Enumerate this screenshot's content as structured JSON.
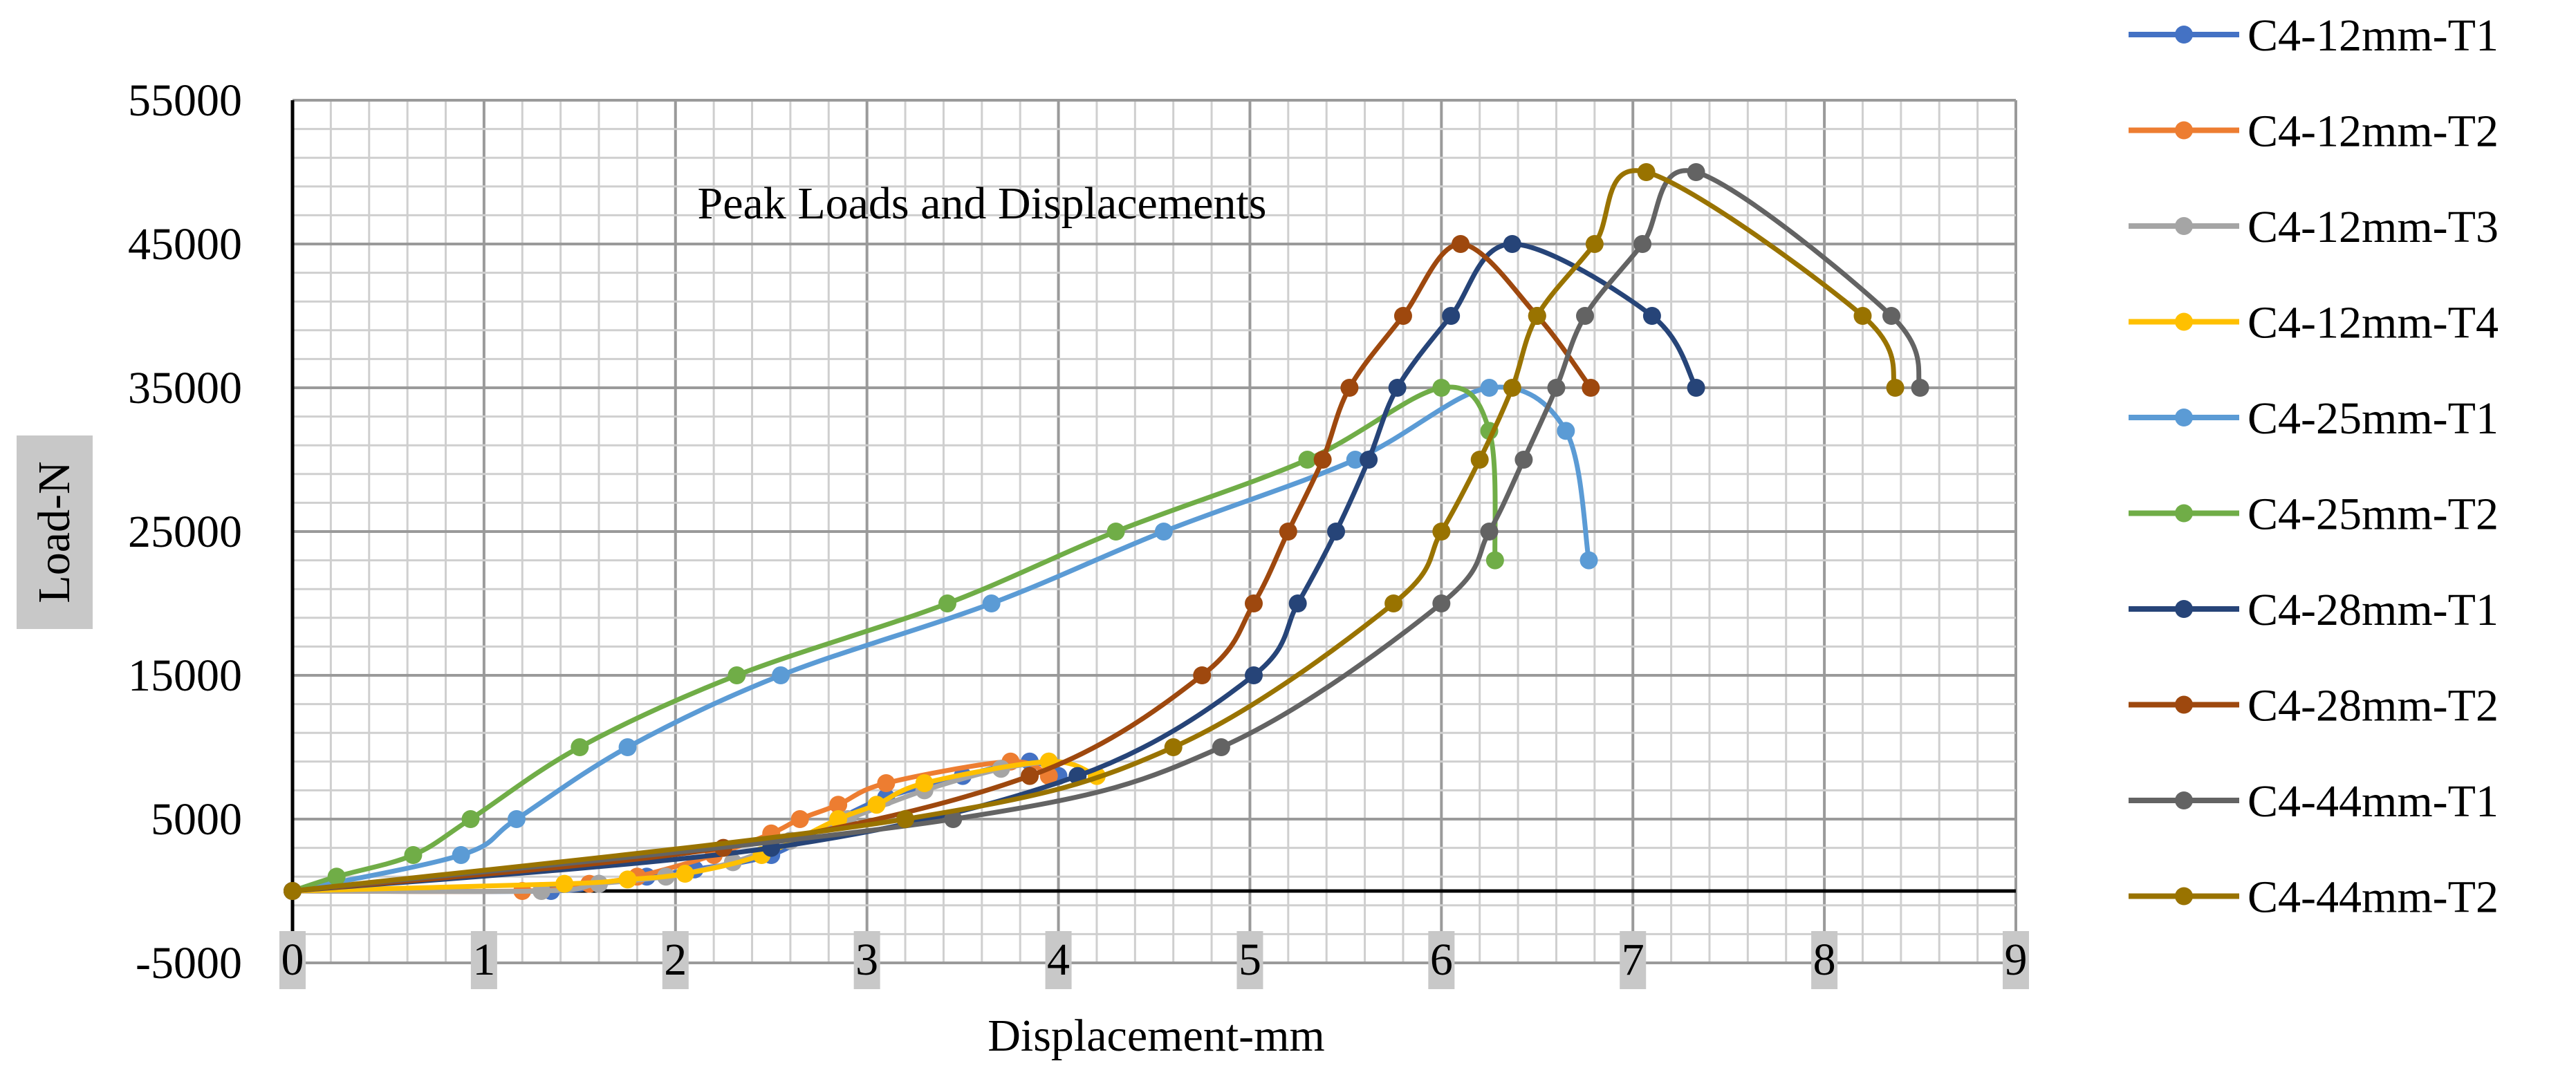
{
  "chart_data": {
    "type": "line",
    "title": "Peak Loads and Displacements",
    "xlabel": "Displacement-mm",
    "ylabel": "Load-N",
    "xlim": [
      0,
      9
    ],
    "ylim": [
      -5000,
      55000
    ],
    "xticks": [
      0,
      1,
      2,
      3,
      4,
      5,
      6,
      7,
      8,
      9
    ],
    "yticks": [
      -5000,
      5000,
      15000,
      25000,
      35000,
      45000,
      55000
    ],
    "grid": true,
    "legend_position": "right",
    "series": [
      {
        "name": "C4-12mm-T1",
        "color": "#4472C4",
        "x": [
          0,
          1.35,
          1.6,
          1.85,
          2.1,
          2.5,
          2.85,
          3.1,
          3.5,
          3.85,
          4.0
        ],
        "y": [
          0,
          0,
          500,
          1000,
          1500,
          2500,
          5000,
          6500,
          8000,
          9000,
          8000
        ]
      },
      {
        "name": "C4-12mm-T2",
        "color": "#ED7D31",
        "x": [
          0,
          1.2,
          1.55,
          1.8,
          2.2,
          2.5,
          2.65,
          2.85,
          3.1,
          3.75,
          3.95
        ],
        "y": [
          0,
          0,
          500,
          1000,
          2500,
          4000,
          5000,
          6000,
          7500,
          9000,
          8000
        ]
      },
      {
        "name": "C4-12mm-T3",
        "color": "#A5A5A5",
        "x": [
          0,
          1.3,
          1.6,
          1.95,
          2.3,
          2.6,
          2.9,
          3.3,
          3.7,
          3.95
        ],
        "y": [
          0,
          0,
          500,
          1000,
          2000,
          3500,
          5000,
          7000,
          8500,
          9000
        ]
      },
      {
        "name": "C4-12mm-T4",
        "color": "#FFC000",
        "x": [
          0,
          1.42,
          1.75,
          2.05,
          2.45,
          2.85,
          3.05,
          3.3,
          3.95,
          4.2
        ],
        "y": [
          0,
          500,
          800,
          1200,
          2500,
          5000,
          6000,
          7500,
          9000,
          8000
        ]
      },
      {
        "name": "C4-25mm-T1",
        "color": "#5B9BD5",
        "x": [
          0,
          0.88,
          1.17,
          1.75,
          2.55,
          3.65,
          4.55,
          5.55,
          6.25,
          6.65,
          6.77
        ],
        "y": [
          0,
          2500,
          5000,
          10000,
          15000,
          20000,
          25000,
          30000,
          35000,
          32000,
          23000
        ]
      },
      {
        "name": "C4-25mm-T2",
        "color": "#70AD47",
        "x": [
          0,
          0.23,
          0.63,
          0.93,
          1.5,
          2.32,
          3.42,
          4.3,
          5.3,
          6.0,
          6.25,
          6.28
        ],
        "y": [
          0,
          1000,
          2500,
          5000,
          10000,
          15000,
          20000,
          25000,
          30000,
          35000,
          32000,
          23000
        ]
      },
      {
        "name": "C4-28mm-T1",
        "color": "#264478",
        "x": [
          0,
          2.5,
          4.1,
          5.02,
          5.25,
          5.45,
          5.62,
          5.77,
          6.05,
          6.37,
          7.1,
          7.33
        ],
        "y": [
          0,
          3000,
          8000,
          15000,
          20000,
          25000,
          30000,
          35000,
          40000,
          45000,
          40000,
          35000
        ]
      },
      {
        "name": "C4-28mm-T2",
        "color": "#9E480E",
        "x": [
          0,
          2.25,
          3.85,
          4.75,
          5.02,
          5.2,
          5.38,
          5.52,
          5.8,
          6.1,
          6.5,
          6.78
        ],
        "y": [
          0,
          3000,
          8000,
          15000,
          20000,
          25000,
          30000,
          35000,
          40000,
          45000,
          40000,
          35000
        ]
      },
      {
        "name": "C4-44mm-T1",
        "color": "#636363",
        "x": [
          0,
          3.45,
          4.85,
          6.0,
          6.25,
          6.43,
          6.6,
          6.75,
          7.05,
          7.33,
          8.35,
          8.5
        ],
        "y": [
          0,
          5000,
          10000,
          20000,
          25000,
          30000,
          35000,
          40000,
          45000,
          50000,
          40000,
          35000
        ]
      },
      {
        "name": "C4-44mm-T2",
        "color": "#997300",
        "x": [
          0,
          3.2,
          4.6,
          5.75,
          6.0,
          6.2,
          6.37,
          6.5,
          6.8,
          7.07,
          8.2,
          8.37
        ],
        "y": [
          0,
          5000,
          10000,
          20000,
          25000,
          30000,
          35000,
          40000,
          45000,
          50000,
          40000,
          35000
        ]
      }
    ]
  }
}
